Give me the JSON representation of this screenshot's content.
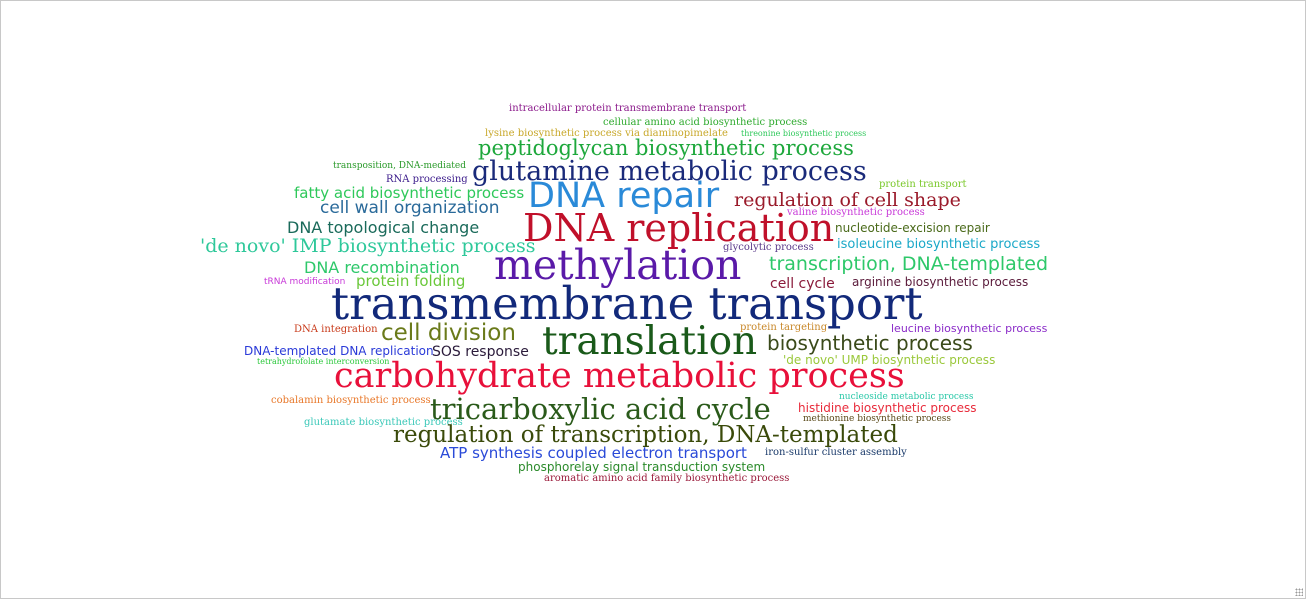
{
  "cloud": {
    "words": [
      {
        "text": "intracellular protein transmembrane transport",
        "color": "#8b1a8b"
      },
      {
        "text": "cellular amino acid biosynthetic process",
        "color": "#2eaa2e"
      },
      {
        "text": "lysine biosynthetic process via diaminopimelate",
        "color": "#c8a82a"
      },
      {
        "text": "threonine biosynthetic process",
        "color": "#2ec85a"
      },
      {
        "text": "peptidoglycan biosynthetic process",
        "color": "#1ea83c"
      },
      {
        "text": "transposition, DNA-mediated",
        "color": "#2a9a2a"
      },
      {
        "text": "glutamine metabolic process",
        "color": "#1a2a7a"
      },
      {
        "text": "RNA processing",
        "color": "#3a1a8a"
      },
      {
        "text": "protein transport",
        "color": "#7ac82a"
      },
      {
        "text": "fatty acid biosynthetic process",
        "color": "#2ec85a"
      },
      {
        "text": "DNA repair",
        "color": "#2a8ad8"
      },
      {
        "text": "regulation of cell shape",
        "color": "#9a1a2a"
      },
      {
        "text": "cell wall organization",
        "color": "#2a6a9a"
      },
      {
        "text": "valine biosynthetic process",
        "color": "#c83ad8"
      },
      {
        "text": "DNA replication",
        "color": "#c0102a"
      },
      {
        "text": "DNA topological change",
        "color": "#1a6a5a"
      },
      {
        "text": "nucleotide-excision repair",
        "color": "#4a6a1a"
      },
      {
        "text": "'de novo' IMP biosynthetic process",
        "color": "#2ec89a"
      },
      {
        "text": "glycolytic process",
        "color": "#5a3a8a"
      },
      {
        "text": "isoleucine biosynthetic process",
        "color": "#1aa8c8"
      },
      {
        "text": "DNA recombination",
        "color": "#2ec86a"
      },
      {
        "text": "methylation",
        "color": "#5a1aa8"
      },
      {
        "text": "transcription, DNA-templated",
        "color": "#2ec86a"
      },
      {
        "text": "tRNA modification",
        "color": "#c83ad8"
      },
      {
        "text": "protein folding",
        "color": "#6ac83a"
      },
      {
        "text": "cell cycle",
        "color": "#8a1a3a"
      },
      {
        "text": "arginine biosynthetic process",
        "color": "#5a1a3a"
      },
      {
        "text": "transmembrane transport",
        "color": "#12297a"
      },
      {
        "text": "DNA integration",
        "color": "#c83a1a"
      },
      {
        "text": "cell division",
        "color": "#6a7a1a"
      },
      {
        "text": "protein targeting",
        "color": "#c8882a"
      },
      {
        "text": "leucine biosynthetic process",
        "color": "#8a2ac8"
      },
      {
        "text": "translation",
        "color": "#1a5a1a"
      },
      {
        "text": "DNA-templated DNA replication",
        "color": "#2a3ad8"
      },
      {
        "text": "SOS response",
        "color": "#2a1a3a"
      },
      {
        "text": "biosynthetic process",
        "color": "#3a4a1a"
      },
      {
        "text": "tetrahydrofolate interconversion",
        "color": "#2ac83a"
      },
      {
        "text": "'de novo' UMP biosynthetic process",
        "color": "#9ac83a"
      },
      {
        "text": "carbohydrate metabolic process",
        "color": "#e8103a"
      },
      {
        "text": "cobalamin biosynthetic process",
        "color": "#e8782a"
      },
      {
        "text": "nucleoside metabolic process",
        "color": "#2ac8a8"
      },
      {
        "text": "tricarboxylic acid cycle",
        "color": "#2a5a1a"
      },
      {
        "text": "histidine biosynthetic process",
        "color": "#e82a3a"
      },
      {
        "text": "glutamate biosynthetic process",
        "color": "#3ac8b8"
      },
      {
        "text": "methionine biosynthetic process",
        "color": "#5a4a1a"
      },
      {
        "text": "regulation of transcription, DNA-templated",
        "color": "#3a4a0a"
      },
      {
        "text": "ATP synthesis coupled electron transport",
        "color": "#2a4ad8"
      },
      {
        "text": "iron-sulfur cluster assembly",
        "color": "#1a3a6a"
      },
      {
        "text": "phosphorelay signal transduction system",
        "color": "#2a8a2a"
      },
      {
        "text": "aromatic amino acid family biosynthetic process",
        "color": "#9a1a3a"
      }
    ]
  }
}
